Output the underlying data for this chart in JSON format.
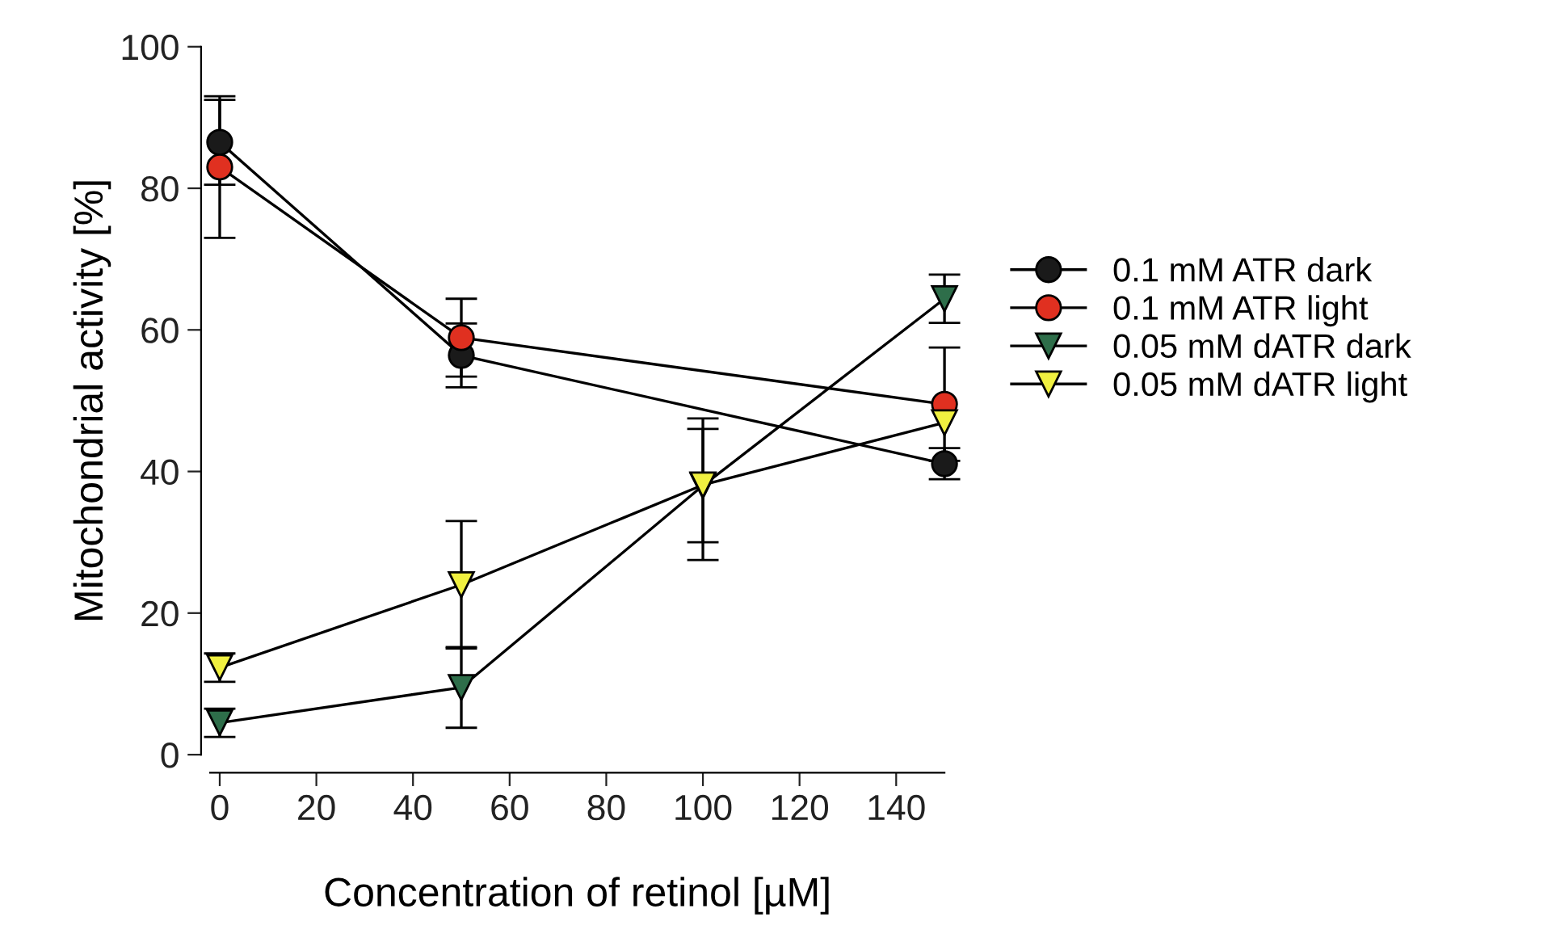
{
  "chart_data": {
    "type": "line",
    "xlabel": "Concentration of retinol [µM]",
    "ylabel": "Mitochondrial activity [%]",
    "x": [
      0,
      50,
      100,
      150
    ],
    "series": [
      {
        "name": "0.1 mM ATR dark",
        "color": "#1a1a1a",
        "marker": "circle",
        "values": [
          86.5,
          56.4,
          null,
          41.1
        ],
        "errors": [
          6,
          4.5,
          null,
          2.2
        ]
      },
      {
        "name": "0.1 mM ATR light",
        "color": "#e03020",
        "marker": "circle",
        "values": [
          83,
          58.9,
          null,
          49.5
        ],
        "errors": [
          10,
          5.5,
          null,
          8
        ]
      },
      {
        "name": "0.05 mM dATR dark",
        "color": "#2e6e4a",
        "marker": "triangle",
        "values": [
          4.5,
          9.5,
          38,
          64.4
        ],
        "errors": [
          2,
          5.7,
          [
            27.5,
            47.5
          ],
          3.4
        ]
      },
      {
        "name": "0.05 mM dATR light",
        "color": "#f0f040",
        "marker": "triangle",
        "values": [
          12.3,
          24,
          38.1,
          46.9
        ],
        "errors": [
          2,
          9,
          [
            30,
            46
          ],
          null
        ]
      }
    ],
    "xlim": [
      -2,
      150
    ],
    "xticks": [
      0,
      20,
      40,
      60,
      80,
      100,
      120,
      140
    ],
    "ylim": [
      0,
      100
    ],
    "yticks": [
      0,
      20,
      40,
      60,
      80,
      100
    ],
    "grid": false,
    "legend": "right",
    "line_style": "solid"
  }
}
